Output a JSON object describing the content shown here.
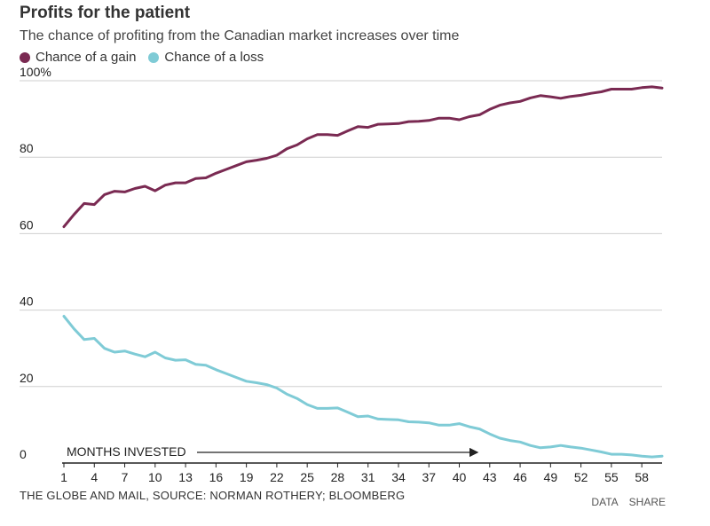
{
  "header": {
    "title": "Profits for the patient",
    "subtitle": "The chance of profiting from the Canadian market increases over time"
  },
  "legend": [
    {
      "label": "Chance of a gain",
      "color": "#7a2a52"
    },
    {
      "label": "Chance of a loss",
      "color": "#7fcbd6"
    }
  ],
  "footer": {
    "source": "THE GLOBE AND MAIL, SOURCE: NORMAN ROTHERY; BLOOMBERG",
    "data_link": "DATA",
    "share_link": "SHARE"
  },
  "chart_data": {
    "type": "line",
    "title": "Profits for the patient",
    "subtitle": "The chance of profiting from the Canadian market increases over time",
    "xlabel": "MONTHS INVESTED",
    "ylabel": "",
    "ylim": [
      0,
      100
    ],
    "xlim": [
      1,
      60
    ],
    "yticks": [
      0,
      20,
      40,
      60,
      80,
      100
    ],
    "ytick_labels": [
      "0",
      "20",
      "40",
      "60",
      "80",
      "100%"
    ],
    "xticks": [
      1,
      4,
      7,
      10,
      13,
      16,
      19,
      22,
      25,
      28,
      31,
      34,
      37,
      40,
      43,
      46,
      49,
      52,
      55,
      58
    ],
    "grid": true,
    "legend_position": "top-left",
    "x": [
      1,
      2,
      3,
      4,
      5,
      6,
      7,
      8,
      9,
      10,
      11,
      12,
      13,
      14,
      15,
      16,
      17,
      18,
      19,
      20,
      21,
      22,
      23,
      24,
      25,
      26,
      27,
      28,
      29,
      30,
      31,
      32,
      33,
      34,
      35,
      36,
      37,
      38,
      39,
      40,
      41,
      42,
      43,
      44,
      45,
      46,
      47,
      48,
      49,
      50,
      51,
      52,
      53,
      54,
      55,
      56,
      57,
      58,
      59,
      60
    ],
    "series": [
      {
        "name": "Chance of a gain",
        "color": "#7a2a52",
        "values": [
          61.8,
          65.0,
          67.9,
          67.6,
          70.2,
          71.1,
          70.9,
          71.8,
          72.4,
          71.2,
          72.7,
          73.3,
          73.3,
          74.4,
          74.6,
          75.8,
          76.8,
          77.8,
          78.8,
          79.2,
          79.7,
          80.5,
          82.2,
          83.2,
          84.8,
          85.9,
          85.9,
          85.7,
          86.9,
          88.0,
          87.8,
          88.6,
          88.7,
          88.8,
          89.3,
          89.4,
          89.6,
          90.2,
          90.2,
          89.8,
          90.6,
          91.1,
          92.5,
          93.6,
          94.2,
          94.6,
          95.5,
          96.1,
          95.8,
          95.4,
          95.9,
          96.2,
          96.7,
          97.1,
          97.8,
          97.8,
          97.8,
          98.2,
          98.4,
          98.1
        ]
      },
      {
        "name": "Chance of a loss",
        "color": "#7fcbd6",
        "values": [
          38.4,
          35.1,
          32.3,
          32.6,
          30.0,
          29.0,
          29.3,
          28.5,
          27.8,
          29.0,
          27.5,
          26.9,
          27.0,
          25.8,
          25.6,
          24.4,
          23.4,
          22.4,
          21.4,
          21.0,
          20.5,
          19.6,
          18.0,
          16.9,
          15.3,
          14.3,
          14.3,
          14.4,
          13.3,
          12.1,
          12.3,
          11.5,
          11.4,
          11.3,
          10.8,
          10.7,
          10.5,
          9.9,
          9.9,
          10.3,
          9.5,
          8.9,
          7.6,
          6.5,
          5.9,
          5.5,
          4.6,
          4.0,
          4.2,
          4.6,
          4.2,
          3.9,
          3.4,
          2.9,
          2.3,
          2.3,
          2.1,
          1.8,
          1.6,
          1.8
        ]
      }
    ]
  }
}
